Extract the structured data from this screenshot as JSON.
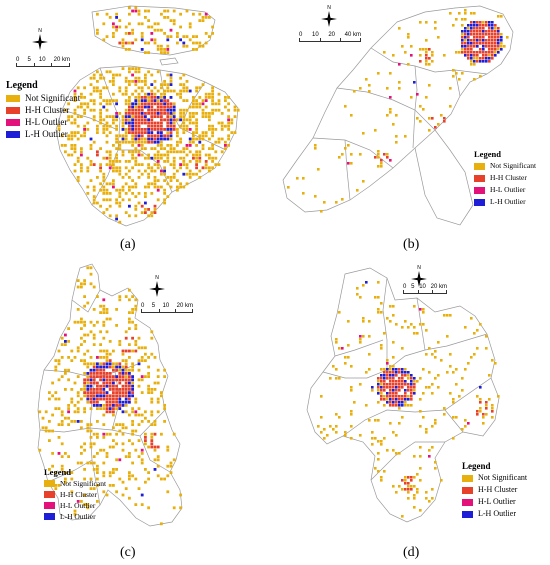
{
  "colors": {
    "not_significant": "#E8B00F",
    "hh_cluster": "#E8412B",
    "hl_outlier": "#E3127A",
    "lh_outlier": "#1E1ED6",
    "boundary": "#9a9a9a"
  },
  "legend": {
    "title": "Legend",
    "items": [
      {
        "label": "Not Significant",
        "color": "#E8B00F"
      },
      {
        "label": "H-H Cluster",
        "color": "#E8412B"
      },
      {
        "label": "H-L Outlier",
        "color": "#E3127A"
      },
      {
        "label": "L-H Outlier",
        "color": "#1E1ED6"
      }
    ]
  },
  "panels": [
    {
      "id": "a",
      "label": "(a)",
      "scale_ticks": [
        "0",
        "5",
        "10",
        "20 km"
      ],
      "compass_letter": "N"
    },
    {
      "id": "b",
      "label": "(b)",
      "scale_ticks": [
        "0",
        "10",
        "20",
        "40 km"
      ],
      "compass_letter": "N"
    },
    {
      "id": "c",
      "label": "(c)",
      "scale_ticks": [
        "0",
        "5",
        "10",
        "20 km"
      ],
      "compass_letter": "N"
    },
    {
      "id": "d",
      "label": "(d)",
      "scale_ticks": [
        "0",
        "5",
        "10",
        "20 km"
      ],
      "compass_letter": "N"
    }
  ]
}
